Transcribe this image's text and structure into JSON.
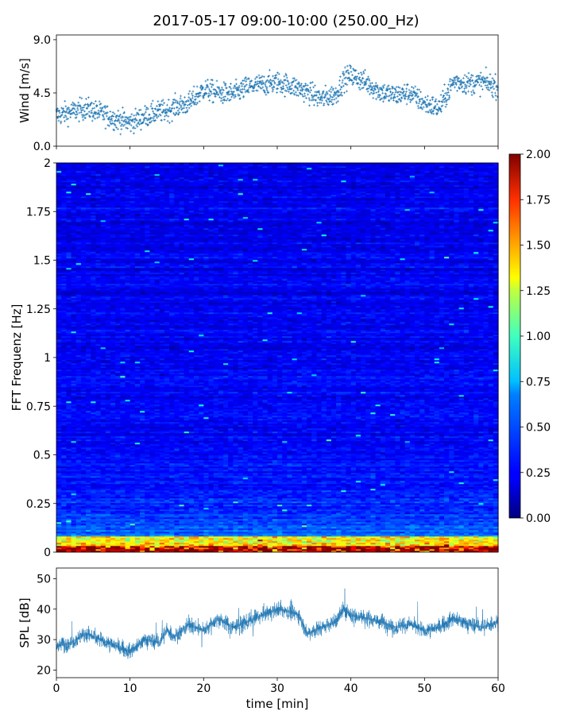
{
  "title": "2017-05-17 09:00-10:00 (250.00_Hz)",
  "chart_data": [
    {
      "type": "scatter",
      "panel": "wind",
      "ylabel": "Wind [m/s]",
      "xlim": [
        0,
        60
      ],
      "ylim": [
        0,
        9.4
      ],
      "yticks": [
        "0.0",
        "4.5",
        "9.0"
      ],
      "yticks_values": [
        0,
        4.5,
        9.0
      ],
      "color": "#1f77b4",
      "marker": "+",
      "series": [
        {
          "x": [
            0,
            2,
            4,
            6,
            8,
            10,
            12,
            14,
            15,
            16,
            18,
            19,
            20,
            22,
            24,
            26,
            28,
            30,
            32,
            34,
            36,
            38,
            39,
            40,
            42,
            44,
            46,
            48,
            50,
            52,
            54,
            56,
            58,
            60
          ],
          "y": [
            2.6,
            2.9,
            3.2,
            2.8,
            2.3,
            2.0,
            2.5,
            2.9,
            3.0,
            3.3,
            3.6,
            4.2,
            4.8,
            4.5,
            4.4,
            5.0,
            5.2,
            5.4,
            5.1,
            4.6,
            4.0,
            4.4,
            5.6,
            6.0,
            5.4,
            4.6,
            4.3,
            4.5,
            3.6,
            3.2,
            5.5,
            5.3,
            5.4,
            5.0
          ]
        }
      ]
    },
    {
      "type": "heatmap",
      "panel": "spectrogram",
      "ylabel": "FFT Frequenz [Hz]",
      "xlim": [
        0,
        60
      ],
      "ylim": [
        0,
        2
      ],
      "yticks": [
        "0",
        "0.25",
        "0.5",
        "0.75",
        "1",
        "1.25",
        "1.5",
        "1.75",
        "2"
      ],
      "yticks_values": [
        0,
        0.25,
        0.5,
        0.75,
        1,
        1.25,
        1.5,
        1.75,
        2
      ],
      "colormap": "jet",
      "clim": [
        0,
        2
      ],
      "colorbar_ticks": [
        "0.00",
        "0.25",
        "0.50",
        "0.75",
        "1.00",
        "1.25",
        "1.50",
        "1.75",
        "2.00"
      ],
      "colorbar_values": [
        0,
        0.25,
        0.5,
        0.75,
        1,
        1.25,
        1.5,
        1.75,
        2
      ]
    },
    {
      "type": "line",
      "panel": "spl",
      "ylabel": "SPL [dB]",
      "xlabel": "time [min]",
      "xlim": [
        0,
        60
      ],
      "ylim": [
        17.5,
        53.5
      ],
      "xticks": [
        "0",
        "10",
        "20",
        "30",
        "40",
        "50",
        "60"
      ],
      "xticks_values": [
        0,
        10,
        20,
        30,
        40,
        50,
        60
      ],
      "yticks": [
        "20",
        "30",
        "40",
        "50"
      ],
      "yticks_values": [
        20,
        30,
        40,
        50
      ],
      "color": "#1f77b4",
      "series": [
        {
          "x": [
            0,
            2,
            4,
            6,
            8,
            10,
            12,
            14,
            15,
            16,
            18,
            20,
            22,
            24,
            26,
            28,
            30,
            32,
            33,
            34,
            36,
            38,
            39,
            40,
            42,
            44,
            46,
            48,
            50,
            52,
            54,
            56,
            58,
            60
          ],
          "y": [
            28,
            29,
            32,
            30,
            28,
            26,
            30,
            29,
            33,
            31,
            35,
            33,
            37,
            34,
            36,
            38,
            40,
            39,
            38,
            32,
            34,
            36,
            40,
            38,
            37,
            36,
            34,
            35,
            33,
            34,
            37,
            35,
            34,
            36
          ]
        }
      ]
    }
  ]
}
